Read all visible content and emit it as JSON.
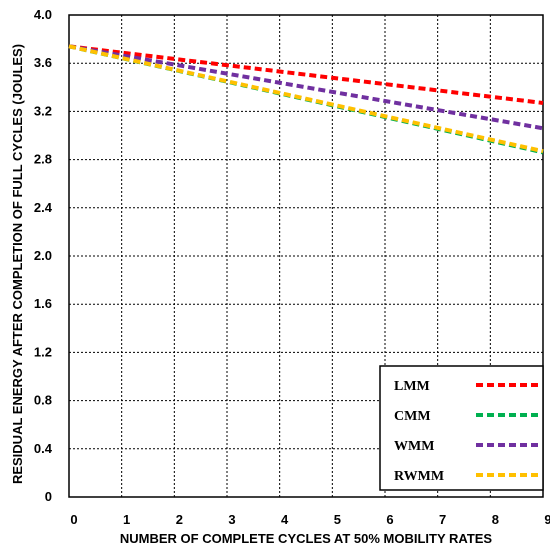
{
  "chart_data": {
    "type": "line",
    "title": "",
    "xlabel": "NUMBER OF COMPLETE CYCLES AT 50% MOBILITY RATES",
    "ylabel": "RESIDUAL ENERGY AFTER COMPLETION OF FULL CYCLES (JOULES)",
    "xlim": [
      0,
      9
    ],
    "ylim": [
      0,
      4.0
    ],
    "x_ticks": [
      "0",
      "1",
      "2",
      "3",
      "4",
      "5",
      "6",
      "7",
      "8",
      "9"
    ],
    "y_ticks": [
      "0",
      "0.4",
      "0.8",
      "1.2",
      "1.6",
      "2.0",
      "2.4",
      "2.8",
      "3.2",
      "3.6",
      "4.0"
    ],
    "grid": true,
    "legend_position": "bottom-right",
    "x": [
      0,
      9
    ],
    "series": [
      {
        "name": "LMM",
        "color": "#ff0000",
        "values": [
          3.74,
          3.27
        ]
      },
      {
        "name": "CMM",
        "color": "#00b050",
        "values": [
          3.74,
          2.86
        ]
      },
      {
        "name": "WMM",
        "color": "#7030a0",
        "values": [
          3.74,
          3.06
        ]
      },
      {
        "name": "RWMM",
        "color": "#ffc000",
        "values": [
          3.74,
          2.87
        ]
      }
    ]
  }
}
